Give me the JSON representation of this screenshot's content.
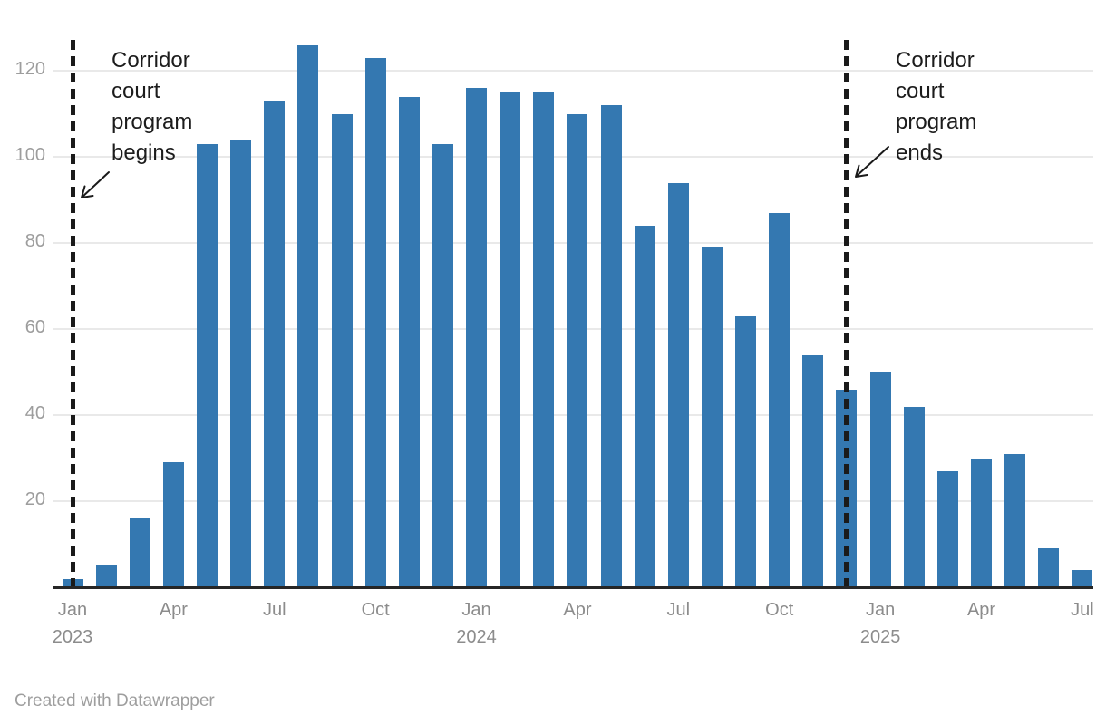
{
  "chart_data": {
    "type": "bar",
    "title": "",
    "xlabel": "",
    "ylabel": "",
    "x": [
      "Jan 2023",
      "Feb 2023",
      "Mar 2023",
      "Apr 2023",
      "May 2023",
      "Jun 2023",
      "Jul 2023",
      "Aug 2023",
      "Sep 2023",
      "Oct 2023",
      "Nov 2023",
      "Dec 2023",
      "Jan 2024",
      "Feb 2024",
      "Mar 2024",
      "Apr 2024",
      "May 2024",
      "Jun 2024",
      "Jul 2024",
      "Aug 2024",
      "Sep 2024",
      "Oct 2024",
      "Nov 2024",
      "Dec 2024",
      "Jan 2025",
      "Feb 2025",
      "Mar 2025",
      "Apr 2025",
      "May 2025",
      "Jun 2025",
      "Jul 2025"
    ],
    "values": [
      2,
      5,
      16,
      29,
      103,
      104,
      113,
      126,
      110,
      123,
      114,
      103,
      116,
      115,
      115,
      110,
      112,
      84,
      94,
      79,
      63,
      87,
      54,
      46,
      50,
      42,
      27,
      30,
      31,
      9,
      4
    ],
    "ylim": [
      0,
      130
    ],
    "y_ticks": [
      20,
      40,
      60,
      80,
      100,
      120
    ],
    "x_ticks": [
      {
        "i": 0,
        "label": "Jan",
        "year": "2023"
      },
      {
        "i": 3,
        "label": "Apr"
      },
      {
        "i": 6,
        "label": "Jul"
      },
      {
        "i": 9,
        "label": "Oct"
      },
      {
        "i": 12,
        "label": "Jan",
        "year": "2024"
      },
      {
        "i": 15,
        "label": "Apr"
      },
      {
        "i": 18,
        "label": "Jul"
      },
      {
        "i": 21,
        "label": "Oct"
      },
      {
        "i": 24,
        "label": "Jan",
        "year": "2025"
      },
      {
        "i": 27,
        "label": "Apr"
      },
      {
        "i": 30,
        "label": "Jul"
      }
    ],
    "grid": true,
    "legend": "none",
    "bar_color": "#3478b1"
  },
  "annotations": {
    "begin": {
      "text": "Corridor court program begins",
      "line_month_index": 0
    },
    "end": {
      "text": "Corridor court program ends",
      "line_month_index": 23
    }
  },
  "footer": {
    "credit": "Created with Datawrapper"
  },
  "colors": {
    "bar": "#3478b1",
    "grid": "#e9e9e9",
    "axis_line": "#262626",
    "dashed_line": "#1a1a1a",
    "y_label": "#9d9d9d",
    "x_label": "#8c8c8c",
    "annotation_text": "#1c1c1c"
  }
}
